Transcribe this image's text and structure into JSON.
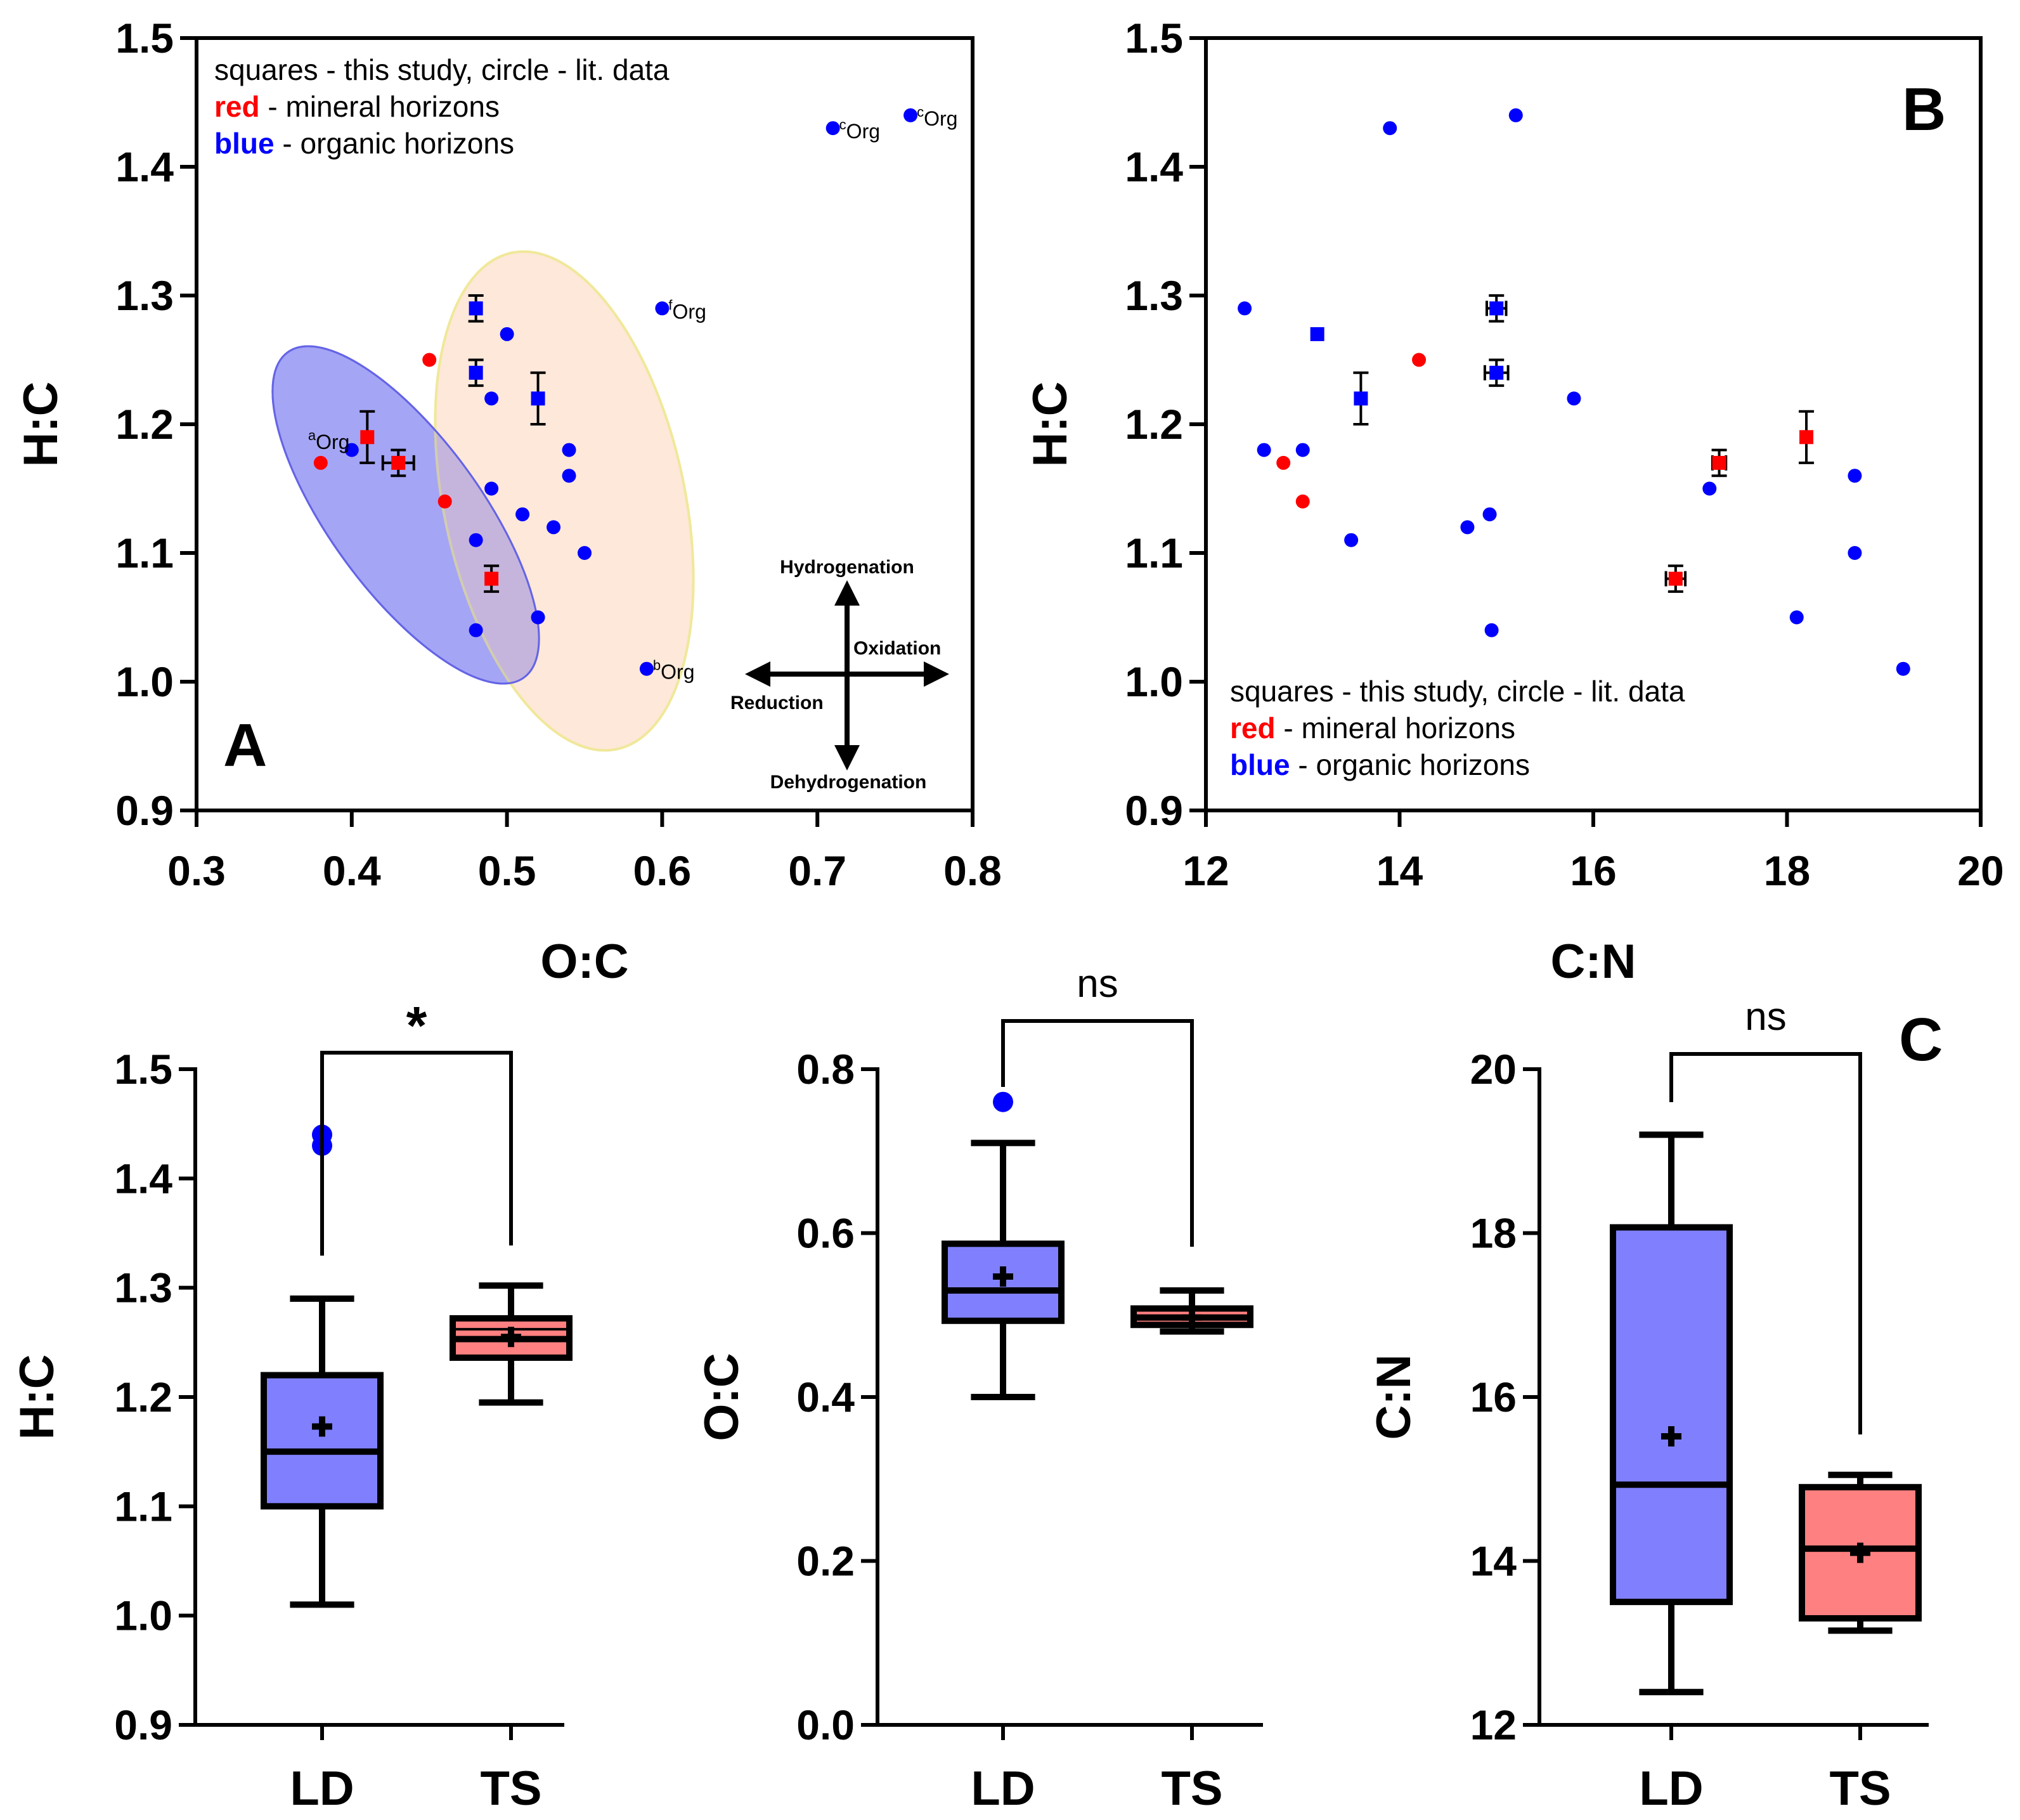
{
  "colors": {
    "organic": "#0000ff",
    "mineral": "#ff0000",
    "box_ld": "#8080ff",
    "box_ts": "#ff8080",
    "ellipse_blue": "#7878f0",
    "ellipse_orange": "#fce0cc"
  },
  "panels": {
    "A": "A",
    "B": "B",
    "C": "C"
  },
  "legend": {
    "line1": "squares - this study, circle - lit. data",
    "red_word": "red",
    "red_rest": " - mineral horizons",
    "blue_word": "blue",
    "blue_rest": " - organic horizons"
  },
  "arrows": {
    "up": "Hydrogenation",
    "down": "Dehydrogenation",
    "right": "Oxidation",
    "left": "Reduction"
  },
  "chart_data": [
    {
      "id": "A",
      "type": "scatter",
      "xlabel": "O:C",
      "ylabel": "H:C",
      "xlim": [
        0.3,
        0.8
      ],
      "ylim": [
        0.9,
        1.5
      ],
      "xticks": [
        "0.3",
        "0.4",
        "0.5",
        "0.6",
        "0.7",
        "0.8"
      ],
      "yticks": [
        "0.9",
        "1.0",
        "1.1",
        "1.2",
        "1.3",
        "1.4",
        "1.5"
      ],
      "lit_organic": [
        [
          0.4,
          1.18
        ],
        [
          0.48,
          1.11
        ],
        [
          0.48,
          1.04
        ],
        [
          0.49,
          1.22
        ],
        [
          0.49,
          1.15
        ],
        [
          0.5,
          1.27
        ],
        [
          0.51,
          1.13
        ],
        [
          0.52,
          1.05
        ],
        [
          0.53,
          1.12
        ],
        [
          0.54,
          1.18
        ],
        [
          0.54,
          1.16
        ],
        [
          0.55,
          1.1
        ],
        [
          0.6,
          1.29
        ],
        [
          0.59,
          1.01
        ],
        [
          0.71,
          1.43
        ],
        [
          0.76,
          1.44
        ]
      ],
      "lit_mineral": [
        [
          0.38,
          1.17
        ],
        [
          0.45,
          1.25
        ],
        [
          0.46,
          1.14
        ]
      ],
      "study_organic": [
        [
          0.48,
          1.29,
          0.0,
          0.01
        ],
        [
          0.48,
          1.24,
          0.0,
          0.01
        ],
        [
          0.52,
          1.22,
          0.0,
          0.02
        ]
      ],
      "study_mineral": [
        [
          0.41,
          1.19,
          0.0,
          0.02
        ],
        [
          0.43,
          1.17,
          0.01,
          0.01
        ],
        [
          0.49,
          1.08,
          0.0,
          0.01
        ]
      ],
      "labels": [
        {
          "x": 0.71,
          "y": 1.43,
          "sup": "c",
          "text": "Org"
        },
        {
          "x": 0.76,
          "y": 1.44,
          "sup": "c",
          "text": "Org"
        },
        {
          "x": 0.6,
          "y": 1.29,
          "sup": "f",
          "text": "Org"
        },
        {
          "x": 0.59,
          "y": 1.01,
          "sup": "b",
          "text": "Org"
        },
        {
          "x": 0.38,
          "y": 1.17,
          "sup": "a",
          "text": "Org"
        }
      ]
    },
    {
      "id": "B",
      "type": "scatter",
      "xlabel": "C:N",
      "ylabel": "H:C",
      "xlim": [
        12,
        20
      ],
      "ylim": [
        0.9,
        1.5
      ],
      "xticks": [
        "12",
        "14",
        "16",
        "18",
        "20"
      ],
      "yticks": [
        "0.9",
        "1.0",
        "1.1",
        "1.2",
        "1.3",
        "1.4",
        "1.5"
      ],
      "lit_organic": [
        [
          12.4,
          1.29
        ],
        [
          12.6,
          1.18
        ],
        [
          13.0,
          1.18
        ],
        [
          13.5,
          1.11
        ],
        [
          13.9,
          1.43
        ],
        [
          14.7,
          1.12
        ],
        [
          14.93,
          1.13
        ],
        [
          14.95,
          1.04
        ],
        [
          15.2,
          1.44
        ],
        [
          15.8,
          1.22
        ],
        [
          17.2,
          1.15
        ],
        [
          18.1,
          1.05
        ],
        [
          18.7,
          1.16
        ],
        [
          18.7,
          1.1
        ],
        [
          19.2,
          1.01
        ]
      ],
      "lit_mineral": [
        [
          12.8,
          1.17
        ],
        [
          13.0,
          1.14
        ],
        [
          14.2,
          1.25
        ]
      ],
      "study_organic": [
        [
          13.15,
          1.27,
          0,
          0
        ],
        [
          13.6,
          1.22,
          0,
          0.02
        ],
        [
          15.0,
          1.29,
          0.1,
          0.01
        ],
        [
          15.0,
          1.24,
          0.12,
          0.01
        ]
      ],
      "study_mineral": [
        [
          16.85,
          1.08,
          0.1,
          0.01
        ],
        [
          17.3,
          1.17,
          0.07,
          0.01
        ],
        [
          18.2,
          1.19,
          0,
          0.02
        ]
      ]
    },
    {
      "id": "C1",
      "type": "box",
      "ylabel": "H:C",
      "categories": [
        "LD",
        "TS"
      ],
      "ylim": [
        0.9,
        1.5
      ],
      "yticks": [
        "0.9",
        "1.0",
        "1.1",
        "1.2",
        "1.3",
        "1.4",
        "1.5"
      ],
      "boxes": [
        {
          "min": 1.01,
          "q1": 1.1,
          "median": 1.15,
          "q3": 1.22,
          "max": 1.29,
          "mean": 1.173,
          "outliers": [
            1.44,
            1.43
          ],
          "color": "#8080ff"
        },
        {
          "min": 1.195,
          "q1": 1.236,
          "median": 1.253,
          "q3": 1.272,
          "max": 1.302,
          "mean": 1.255,
          "extra_line": 1.262,
          "outliers": [],
          "color": "#ff8080"
        }
      ],
      "significance": "*"
    },
    {
      "id": "C2",
      "type": "box",
      "ylabel": "O:C",
      "categories": [
        "LD",
        "TS"
      ],
      "ylim": [
        0.0,
        0.8
      ],
      "yticks": [
        "0.0",
        "0.2",
        "0.4",
        "0.6",
        "0.8"
      ],
      "boxes": [
        {
          "min": 0.4,
          "q1": 0.493,
          "median": 0.53,
          "q3": 0.587,
          "max": 0.71,
          "mean": 0.547,
          "outliers": [
            0.76
          ],
          "color": "#8080ff"
        },
        {
          "min": 0.48,
          "q1": 0.488,
          "median": 0.497,
          "q3": 0.508,
          "max": 0.53,
          "mean": 0.497,
          "outliers": [],
          "color": "#ff8080"
        }
      ],
      "significance": "ns"
    },
    {
      "id": "C3",
      "type": "box",
      "ylabel": "C:N",
      "categories": [
        "LD",
        "TS"
      ],
      "ylim": [
        12,
        20
      ],
      "yticks": [
        "12",
        "14",
        "16",
        "18",
        "20"
      ],
      "boxes": [
        {
          "min": 12.4,
          "q1": 13.5,
          "median": 14.93,
          "q3": 18.07,
          "max": 19.2,
          "mean": 15.52,
          "outliers": [],
          "color": "#8080ff"
        },
        {
          "min": 13.15,
          "q1": 13.3,
          "median": 14.15,
          "q3": 14.9,
          "max": 15.05,
          "mean": 14.1,
          "outliers": [],
          "color": "#ff8080"
        }
      ],
      "significance": "ns"
    }
  ]
}
